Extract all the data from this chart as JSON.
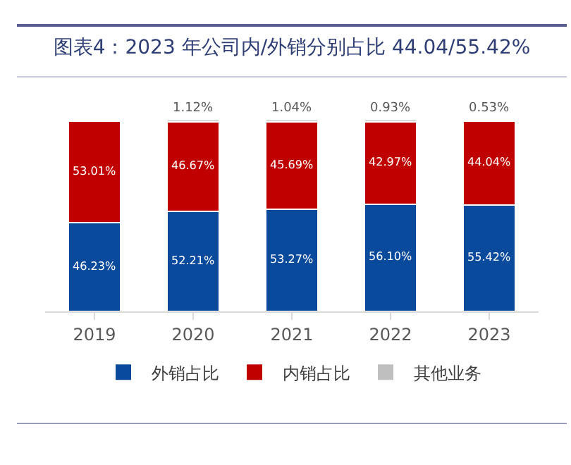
{
  "chart_data": {
    "type": "bar",
    "title": "图表4：2023 年公司内/外销分别占比 44.04/55.42%",
    "stacked": true,
    "legend": "bottom",
    "grid": false,
    "categories": [
      "2019",
      "2020",
      "2021",
      "2022",
      "2023"
    ],
    "series": [
      {
        "name": "外销占比",
        "color": "#0a4a9c",
        "values": [
          46.23,
          52.21,
          53.27,
          56.1,
          55.42
        ],
        "value_labels": [
          "46.23%",
          "52.21%",
          "53.27%",
          "56.10%",
          "55.42%"
        ]
      },
      {
        "name": "内销占比",
        "color": "#c00000",
        "values": [
          53.01,
          46.67,
          45.69,
          42.97,
          44.04
        ],
        "value_labels": [
          "53.01%",
          "46.67%",
          "45.69%",
          "42.97%",
          "44.04%"
        ]
      },
      {
        "name": "其他业务",
        "color": "#bfbfbf",
        "values": [
          null,
          1.12,
          1.04,
          0.93,
          0.53
        ],
        "value_labels": [
          null,
          "1.12%",
          "1.04%",
          "0.93%",
          "0.53%"
        ]
      }
    ]
  }
}
